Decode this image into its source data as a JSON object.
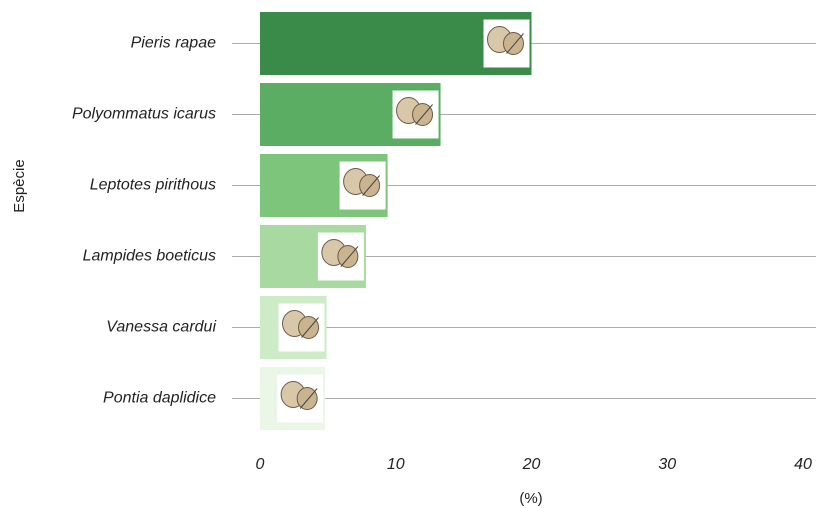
{
  "chart_data": {
    "type": "barh",
    "y_label": "Espècie",
    "x_label": "(%)",
    "categories": [
      "Pieris rapae",
      "Polyommatus icarus",
      "Leptotes pirithous",
      "Lampides boeticus",
      "Vanessa cardui",
      "Pontia daplidice"
    ],
    "values": [
      20.0,
      13.3,
      9.4,
      7.8,
      4.9,
      4.8
    ],
    "colors": [
      "#3a8a4a",
      "#5aad63",
      "#7dc57b",
      "#a8d9a0",
      "#cdebc6",
      "#eaf6e6"
    ],
    "xlim": [
      0,
      40
    ],
    "xticks": [
      0,
      10,
      20,
      30,
      40
    ],
    "grid": true
  }
}
